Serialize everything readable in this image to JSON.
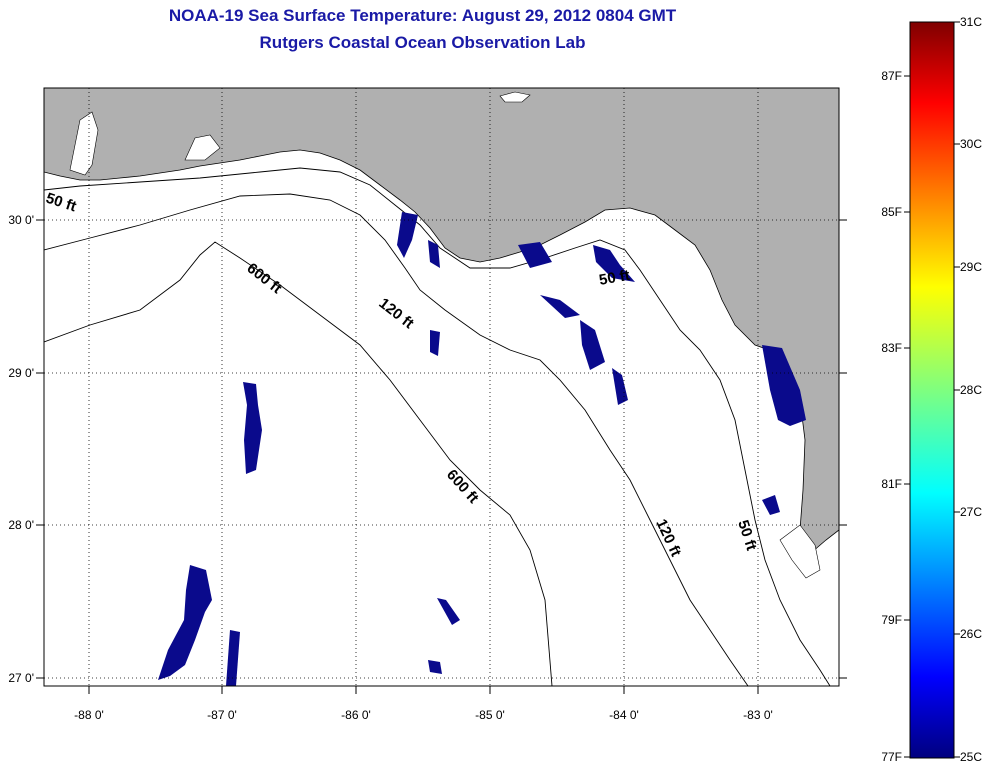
{
  "title": {
    "line1": "NOAA-19 Sea Surface Temperature:  August 29, 2012 0804 GMT",
    "line2": "Rutgers Coastal Ocean Observation Lab"
  },
  "map": {
    "lon_ticks": [
      "-88 0'",
      "-87 0'",
      "-86 0'",
      "-85 0'",
      "-84 0'",
      "-83 0'"
    ],
    "lat_ticks": [
      "30 0'",
      "29 0'",
      "28 0'",
      "27 0'"
    ],
    "contours": {
      "c50_west": "50 ft",
      "c600_upper": "600 ft",
      "c120_upper": "120 ft",
      "c50_east": "50 ft",
      "c600_lower": "600 ft",
      "c120_lower": "120 ft",
      "c50_lower": "50 ft"
    },
    "colors": {
      "land": "#b0b0b0",
      "water": "#ffffff",
      "sst_patch": "#0a0a8c"
    }
  },
  "colorbar": {
    "celsius": [
      "31C",
      "30C",
      "29C",
      "28C",
      "27C",
      "26C",
      "25C"
    ],
    "fahrenheit": [
      "87F",
      "85F",
      "83F",
      "81F",
      "79F",
      "77F"
    ],
    "range_c": [
      25,
      31
    ]
  }
}
